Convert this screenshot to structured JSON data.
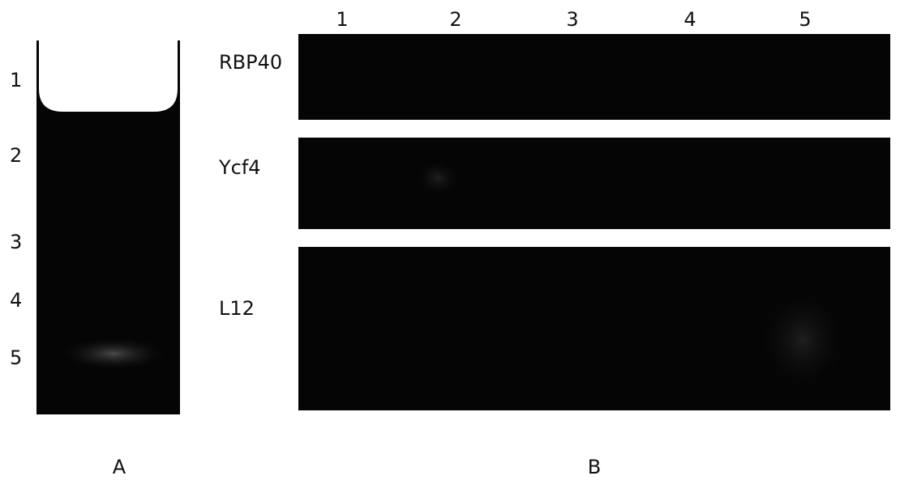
{
  "panel_a": {
    "lane_labels": [
      "1",
      "2",
      "3",
      "4",
      "5"
    ],
    "caption": "A"
  },
  "panel_b": {
    "column_labels": [
      "1",
      "2",
      "3",
      "4",
      "5"
    ],
    "row_labels": [
      "RBP40",
      "Ycf4",
      "L12"
    ],
    "caption": "B"
  }
}
